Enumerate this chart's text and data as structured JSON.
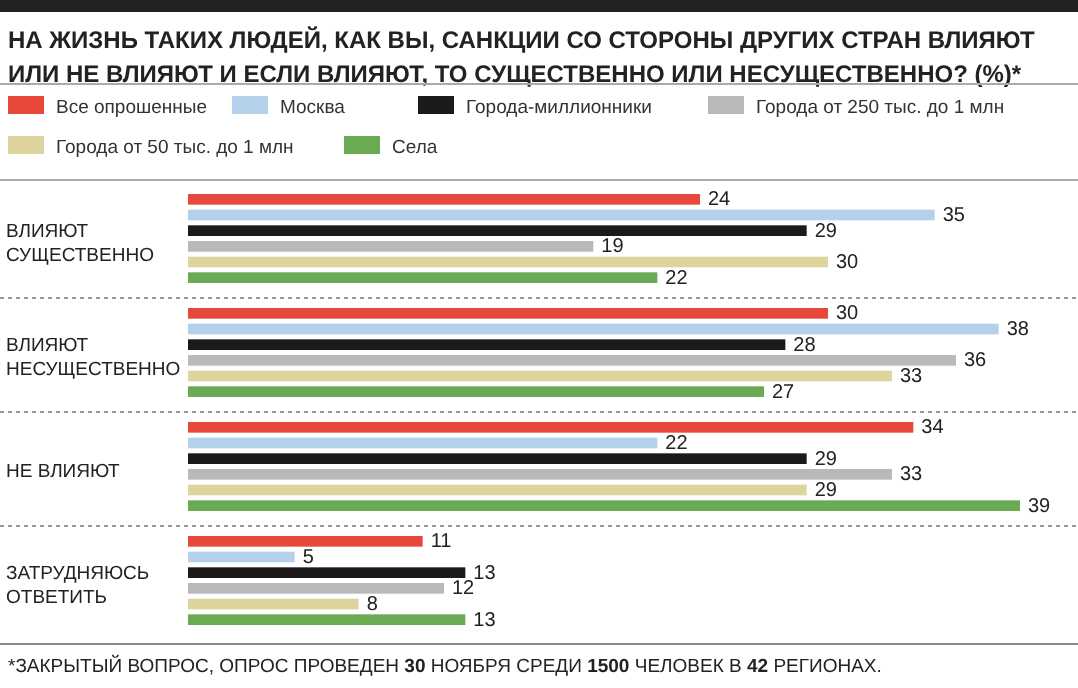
{
  "chart_data": {
    "type": "bar",
    "orientation": "horizontal",
    "title": "НА ЖИЗНЬ ТАКИХ ЛЮДЕЙ, КАК ВЫ, САНКЦИИ СО СТОРОНЫ ДРУГИХ СТРАН ВЛИЯЮТ ИЛИ НЕ ВЛИЯЮТ И ЕСЛИ ВЛИЯЮТ, ТО СУЩЕСТВЕННО ИЛИ НЕСУЩЕСТВЕННО? (%)*",
    "categories": [
      "ВЛИЯЮТ\nСУЩЕСТВЕННО",
      "ВЛИЯЮТ\nНЕСУЩЕСТВЕННО",
      "НЕ ВЛИЯЮТ",
      "ЗАТРУДНЯЮСЬ\nОТВЕТИТЬ"
    ],
    "series": [
      {
        "name": "Все опрошенные",
        "color": "#e8483b",
        "values": [
          24,
          30,
          34,
          11
        ]
      },
      {
        "name": "Москва",
        "color": "#b3d1ea",
        "values": [
          35,
          38,
          22,
          5
        ]
      },
      {
        "name": "Города-миллионники",
        "color": "#1a1a1a",
        "values": [
          29,
          28,
          29,
          13
        ]
      },
      {
        "name": "Города от 250 тыс. до 1 млн",
        "color": "#b9b9b9",
        "values": [
          19,
          36,
          33,
          12
        ]
      },
      {
        "name": "Города от 50 тыс. до 1 млн",
        "color": "#dcd49c",
        "values": [
          30,
          33,
          29,
          8
        ]
      },
      {
        "name": "Села",
        "color": "#6aaa52",
        "values": [
          22,
          27,
          39,
          13
        ]
      }
    ],
    "data_labels": true,
    "legend": "top",
    "annotations": [
      "*ЗАКРЫТЫЙ ВОПРОС, ОПРОС ПРОВЕДЕН 30 НОЯБРЯ СРЕДИ 1500 ЧЕЛОВЕК В 42 РЕГИОНАХ."
    ]
  }
}
